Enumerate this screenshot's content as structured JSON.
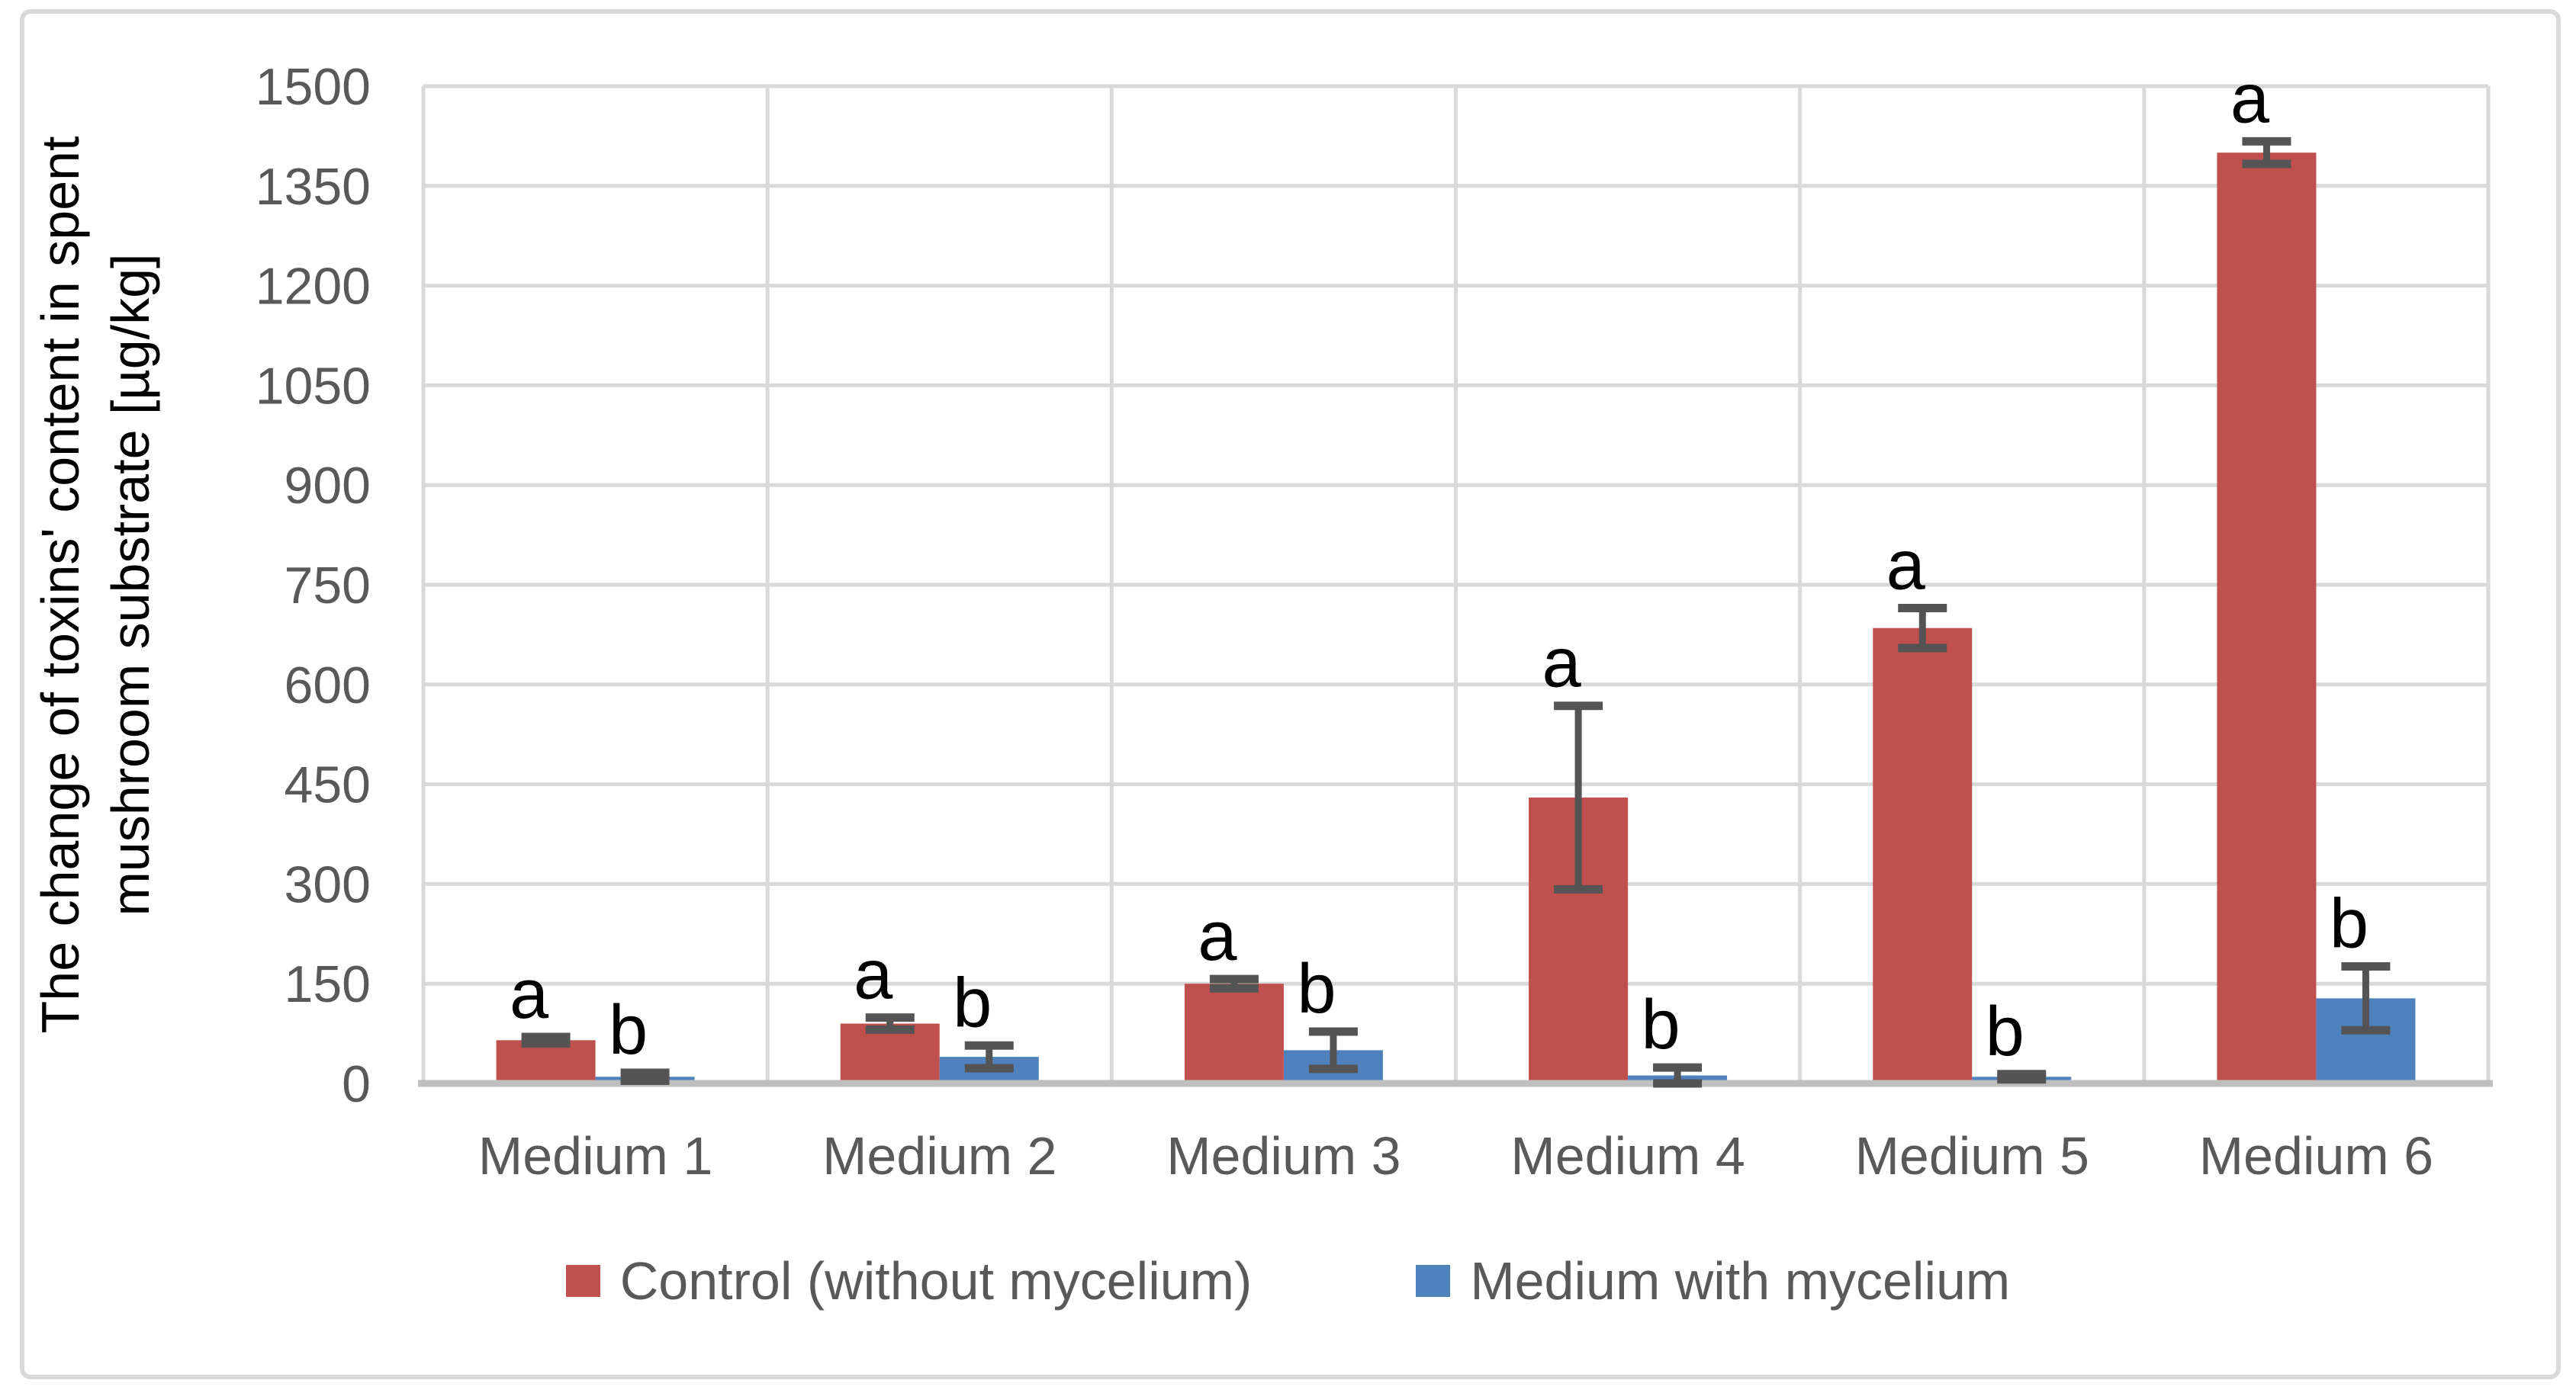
{
  "chart_data": {
    "type": "bar",
    "title": "",
    "ylabel_lines": [
      "The change of toxins' content in spent",
      "mushroom substrate [µg/kg]"
    ],
    "xlabel": "",
    "categories": [
      "Medium 1",
      "Medium 2",
      "Medium 3",
      "Medium 4",
      "Medium 5",
      "Medium 6"
    ],
    "series": [
      {
        "name": "Control (without mycelium)",
        "color": "#C0504D",
        "values": [
          65,
          90,
          150,
          430,
          685,
          1400
        ],
        "errors": [
          5,
          9,
          7,
          138,
          30,
          17
        ],
        "sig_letters": [
          "a",
          "a",
          "a",
          "a",
          "a",
          "a"
        ]
      },
      {
        "name": "Medium with mycelium",
        "color": "#4F81BD",
        "values": [
          10,
          40,
          50,
          12,
          10,
          128
        ],
        "errors": [
          6,
          17,
          28,
          12,
          4,
          48
        ],
        "sig_letters": [
          "b",
          "b",
          "b",
          "b",
          "b",
          "b"
        ]
      }
    ],
    "ylim": [
      0,
      1500
    ],
    "ytick_step": 150,
    "yticks": [
      0,
      150,
      300,
      450,
      600,
      750,
      900,
      1050,
      1200,
      1350,
      1500
    ],
    "grid": true,
    "legend_position": "bottom"
  },
  "colors": {
    "gridline": "#D9D9D9",
    "axis_line": "#BFBFBF",
    "tick_text": "#595959",
    "error_bar": "#545454",
    "sig_letter": "#000000",
    "frame_border": "#D9D9D9",
    "background": "#FFFFFF"
  }
}
